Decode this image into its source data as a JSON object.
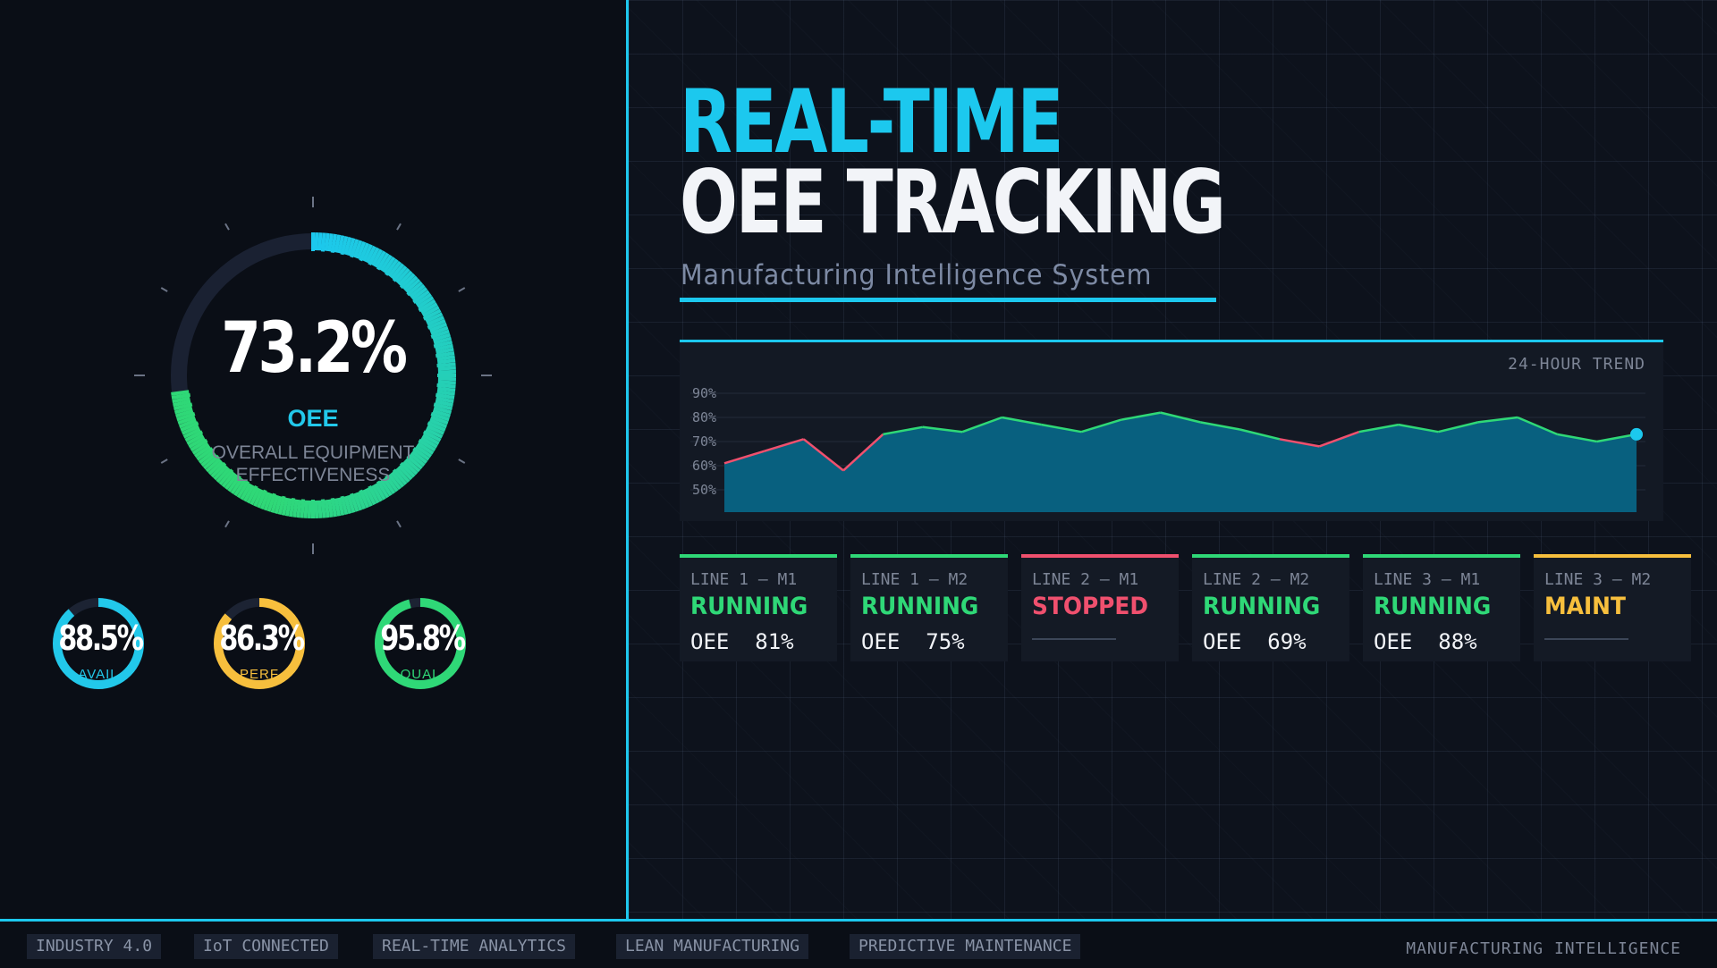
{
  "oee": {
    "value": "73.2%",
    "fraction": 0.732,
    "label": "OEE",
    "sublabel_line1": "OVERALL EQUIPMENT",
    "sublabel_line2": "EFFECTIVENESS"
  },
  "metrics": [
    {
      "value": "88.5%",
      "fraction": 0.885,
      "label": "AVAIL",
      "color": "#22c8ea"
    },
    {
      "value": "86.3%",
      "fraction": 0.863,
      "label": "PERF",
      "color": "#f7bf3d"
    },
    {
      "value": "95.8%",
      "fraction": 0.958,
      "label": "QUAL",
      "color": "#2fd877"
    }
  ],
  "header": {
    "title_line1": "REAL-TIME",
    "title_line2": "OEE TRACKING",
    "subtitle": "Manufacturing Intelligence System"
  },
  "trend": {
    "label": "24-HOUR TREND"
  },
  "chart_data": {
    "type": "area",
    "title": "24-HOUR TREND",
    "y_ticks": [
      "90%",
      "80%",
      "70%",
      "60%",
      "50%"
    ],
    "ylim": [
      40,
      90
    ],
    "x": [
      0,
      1,
      2,
      3,
      4,
      5,
      6,
      7,
      8,
      9,
      10,
      11,
      12,
      13,
      14,
      15,
      16,
      17,
      18,
      19,
      20,
      21,
      22,
      23
    ],
    "values": [
      61,
      66,
      71,
      58,
      73,
      76,
      74,
      80,
      77,
      74,
      79,
      82,
      78,
      75,
      71,
      68,
      74,
      77,
      74,
      78,
      80,
      73,
      70,
      73
    ],
    "line_color": "#2fd877",
    "low_color": "#f0506e",
    "fill_color": "#08607f",
    "grid": true
  },
  "cards": [
    {
      "line": "LINE 1 — M1",
      "status": "RUNNING",
      "oee": "OEE  81%",
      "color": "#2fd877"
    },
    {
      "line": "LINE 1 — M2",
      "status": "RUNNING",
      "oee": "OEE  75%",
      "color": "#2fd877"
    },
    {
      "line": "LINE 2 — M1",
      "status": "STOPPED",
      "oee": "",
      "color": "#f0506e"
    },
    {
      "line": "LINE 2 — M2",
      "status": "RUNNING",
      "oee": "OEE  69%",
      "color": "#2fd877"
    },
    {
      "line": "LINE 3 — M1",
      "status": "RUNNING",
      "oee": "OEE  88%",
      "color": "#2fd877"
    },
    {
      "line": "LINE 3 — M2",
      "status": "MAINT",
      "oee": "",
      "color": "#f7bf3d"
    }
  ],
  "footer": {
    "tags": [
      "INDUSTRY 4.0",
      "IoT CONNECTED",
      "REAL-TIME ANALYTICS",
      "LEAN MANUFACTURING",
      "PREDICTIVE MAINTENANCE"
    ],
    "right_text": "MANUFACTURING INTELLIGENCE"
  }
}
